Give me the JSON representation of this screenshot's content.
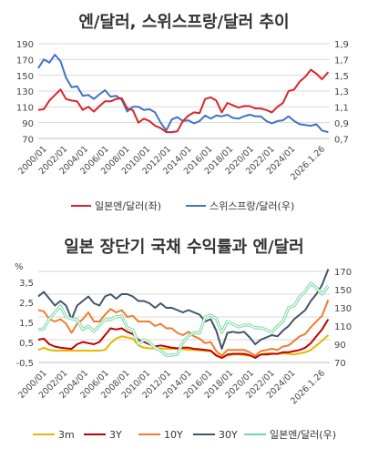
{
  "chart_data": [
    {
      "type": "line",
      "title": "엔/달러, 스위스프랑/달러 추이",
      "ylabel_left": "",
      "ylabel_right": "",
      "ylim_left": [
        70,
        190
      ],
      "yticks_left": [
        "190",
        "170",
        "150",
        "130",
        "110",
        "90",
        "70"
      ],
      "ylim_right": [
        0.7,
        1.9
      ],
      "yticks_right": [
        "1,9",
        "1,7",
        "1,5",
        "1,3",
        "1,1",
        "0,9",
        "0,7"
      ],
      "x_tick_labels": [
        "2000/01",
        "2002/01",
        "2004/01",
        "2006/01",
        "2008/01",
        "2010/01",
        "2012/01",
        "2014/01",
        "2016/01",
        "2018/01",
        "2020/01",
        "2022/01",
        "2024/01",
        "2026.1.26"
      ],
      "x": [
        2000.0,
        2000.5,
        2001.0,
        2001.5,
        2002.0,
        2002.5,
        2003.0,
        2003.5,
        2004.0,
        2004.5,
        2005.0,
        2005.5,
        2006.0,
        2006.5,
        2007.0,
        2007.5,
        2008.0,
        2008.5,
        2009.0,
        2009.5,
        2010.0,
        2010.5,
        2011.0,
        2011.5,
        2012.0,
        2012.5,
        2013.0,
        2013.5,
        2014.0,
        2014.5,
        2015.0,
        2015.5,
        2016.0,
        2016.5,
        2017.0,
        2017.5,
        2018.0,
        2018.5,
        2019.0,
        2019.5,
        2020.0,
        2020.5,
        2021.0,
        2021.5,
        2022.0,
        2022.5,
        2023.0,
        2023.5,
        2024.0,
        2024.5,
        2025.0,
        2025.5,
        2026.07
      ],
      "series": [
        {
          "name": "일본엔/달러(좌)",
          "axis": "left",
          "color": "#d9262c",
          "values": [
            106,
            107,
            118,
            125,
            132,
            120,
            118,
            117,
            106,
            110,
            104,
            111,
            117,
            117,
            120,
            121,
            108,
            106,
            90,
            95,
            92,
            86,
            83,
            78,
            78,
            79,
            92,
            99,
            103,
            102,
            120,
            122,
            118,
            103,
            115,
            112,
            109,
            111,
            111,
            108,
            108,
            106,
            103,
            110,
            115,
            130,
            132,
            142,
            148,
            157,
            152,
            145,
            154
          ]
        },
        {
          "name": "스위스프랑/달러(우)",
          "axis": "right",
          "color": "#4472c4",
          "values": [
            1.59,
            1.7,
            1.66,
            1.76,
            1.68,
            1.47,
            1.35,
            1.36,
            1.24,
            1.25,
            1.2,
            1.26,
            1.31,
            1.23,
            1.24,
            1.19,
            1.04,
            1.1,
            1.1,
            1.06,
            1.07,
            1.03,
            0.9,
            0.8,
            0.94,
            0.97,
            0.92,
            0.93,
            0.89,
            0.92,
            0.99,
            0.95,
            0.99,
            0.98,
            1.0,
            0.96,
            0.95,
            0.98,
            1.0,
            0.98,
            0.98,
            0.92,
            0.89,
            0.92,
            0.93,
            0.98,
            0.92,
            0.88,
            0.87,
            0.86,
            0.88,
            0.8,
            0.78
          ]
        }
      ],
      "legend_placement": "bottom"
    },
    {
      "type": "line",
      "title": "일본 장단기 국채 수익률과 엔/달러",
      "ylabel_left": "%",
      "ylabel_right": "",
      "ylim_left": [
        -0.5,
        3.5
      ],
      "yticks_left": [
        "3,5",
        "2,5",
        "1,5",
        "0,5",
        "-0,5"
      ],
      "ylim_right": [
        70,
        170
      ],
      "yticks_right": [
        "170",
        "150",
        "130",
        "110",
        "90",
        "70"
      ],
      "x_tick_labels": [
        "2000/01",
        "2002/01",
        "2004/01",
        "2006/01",
        "2008/01",
        "2010/01",
        "2012/01",
        "2014/01",
        "2016/01",
        "2018/01",
        "2020/01",
        "2022/01",
        "2024/01",
        "2026.1.26"
      ],
      "x": [
        2000.0,
        2000.5,
        2001.0,
        2001.5,
        2002.0,
        2002.5,
        2003.0,
        2003.5,
        2004.0,
        2004.5,
        2005.0,
        2005.5,
        2006.0,
        2006.5,
        2007.0,
        2007.5,
        2008.0,
        2008.5,
        2009.0,
        2009.5,
        2010.0,
        2010.5,
        2011.0,
        2011.5,
        2012.0,
        2012.5,
        2013.0,
        2013.5,
        2014.0,
        2014.5,
        2015.0,
        2015.5,
        2016.0,
        2016.5,
        2017.0,
        2017.5,
        2018.0,
        2018.5,
        2019.0,
        2019.5,
        2020.0,
        2020.5,
        2021.0,
        2021.5,
        2022.0,
        2022.5,
        2023.0,
        2023.5,
        2024.0,
        2024.5,
        2025.0,
        2025.5,
        2026.07
      ],
      "series": [
        {
          "name": "3m",
          "axis": "left",
          "color": "#e6b800",
          "values": [
            0.05,
            0.15,
            0.05,
            0.02,
            0.02,
            0.02,
            0.02,
            0.02,
            0.02,
            0.02,
            0.02,
            0.02,
            0.05,
            0.35,
            0.55,
            0.65,
            0.6,
            0.55,
            0.25,
            0.15,
            0.12,
            0.12,
            0.12,
            0.1,
            0.1,
            0.1,
            0.08,
            0.05,
            0.05,
            0.03,
            0.01,
            0.0,
            -0.15,
            -0.3,
            -0.2,
            -0.15,
            -0.15,
            -0.18,
            -0.2,
            -0.25,
            -0.15,
            -0.1,
            -0.1,
            -0.12,
            -0.1,
            -0.12,
            -0.15,
            -0.1,
            -0.05,
            0.05,
            0.25,
            0.45,
            0.7
          ]
        },
        {
          "name": "3Y",
          "axis": "left",
          "color": "#c00000",
          "values": [
            0.5,
            0.55,
            0.3,
            0.2,
            0.15,
            0.12,
            0.1,
            0.3,
            0.4,
            0.35,
            0.3,
            0.4,
            0.7,
            1.0,
            0.95,
            1.0,
            0.85,
            0.75,
            0.5,
            0.4,
            0.3,
            0.2,
            0.25,
            0.2,
            0.15,
            0.12,
            0.15,
            0.15,
            0.1,
            0.08,
            0.05,
            0.02,
            -0.2,
            -0.3,
            -0.15,
            -0.12,
            -0.12,
            -0.12,
            -0.18,
            -0.3,
            -0.15,
            -0.15,
            -0.12,
            -0.12,
            -0.05,
            -0.05,
            0.0,
            0.05,
            0.15,
            0.35,
            0.65,
            0.95,
            1.4
          ]
        },
        {
          "name": "10Y",
          "axis": "left",
          "color": "#ed7d31",
          "values": [
            1.8,
            1.75,
            1.4,
            1.3,
            1.4,
            1.2,
            0.8,
            1.2,
            1.4,
            1.7,
            1.3,
            1.3,
            1.6,
            1.85,
            1.7,
            1.8,
            1.5,
            1.55,
            1.3,
            1.3,
            1.3,
            1.1,
            1.2,
            1.0,
            1.0,
            0.8,
            0.7,
            0.85,
            0.65,
            0.55,
            0.35,
            0.4,
            0.0,
            -0.2,
            0.05,
            0.05,
            0.05,
            0.05,
            -0.05,
            -0.2,
            0.0,
            0.05,
            0.1,
            0.05,
            0.2,
            0.25,
            0.45,
            0.65,
            0.75,
            1.05,
            1.3,
            1.55,
            2.25
          ]
        },
        {
          "name": "30Y",
          "axis": "left",
          "color": "#44546a",
          "values": [
            2.4,
            2.6,
            2.3,
            2.0,
            2.2,
            2.0,
            1.4,
            2.0,
            2.2,
            2.4,
            2.1,
            2.0,
            2.4,
            2.5,
            2.3,
            2.5,
            2.5,
            2.4,
            2.2,
            2.2,
            2.1,
            1.9,
            2.1,
            1.9,
            1.9,
            1.8,
            1.7,
            1.8,
            1.7,
            1.6,
            1.3,
            1.4,
            0.9,
            0.1,
            0.8,
            0.85,
            0.8,
            0.85,
            0.6,
            0.3,
            0.5,
            0.6,
            0.7,
            0.65,
            0.9,
            1.1,
            1.4,
            1.6,
            1.8,
            2.2,
            2.5,
            2.9,
            3.6
          ]
        },
        {
          "name": "일본엔/달러(우)",
          "axis": "right",
          "color": "#70d79b",
          "values": [
            106,
            107,
            118,
            125,
            132,
            120,
            118,
            117,
            106,
            110,
            104,
            111,
            117,
            117,
            120,
            121,
            108,
            106,
            90,
            95,
            92,
            86,
            83,
            78,
            78,
            79,
            92,
            99,
            103,
            102,
            120,
            122,
            118,
            103,
            115,
            112,
            109,
            111,
            111,
            108,
            108,
            106,
            103,
            110,
            115,
            130,
            132,
            142,
            148,
            157,
            152,
            145,
            154
          ]
        }
      ],
      "legend_placement": "bottom"
    }
  ]
}
